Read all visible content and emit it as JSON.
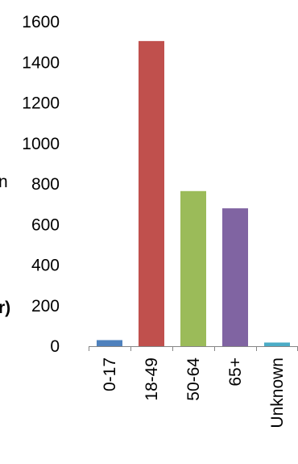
{
  "chart_data": {
    "type": "bar",
    "categories": [
      "0-17",
      "18-49",
      "50-64",
      "65+",
      "Unknown"
    ],
    "values": [
      30,
      1505,
      765,
      680,
      18
    ],
    "ylim": [
      0,
      1600
    ],
    "yticks": [
      0,
      200,
      400,
      600,
      800,
      1000,
      1200,
      1400,
      1600
    ],
    "grid": false,
    "legend": "none",
    "colors": [
      "#4F81BD",
      "#C0504D",
      "#9BBB59",
      "#8064A2",
      "#4BACC6"
    ],
    "cut_off_left_text": [
      "n",
      "r)"
    ]
  }
}
